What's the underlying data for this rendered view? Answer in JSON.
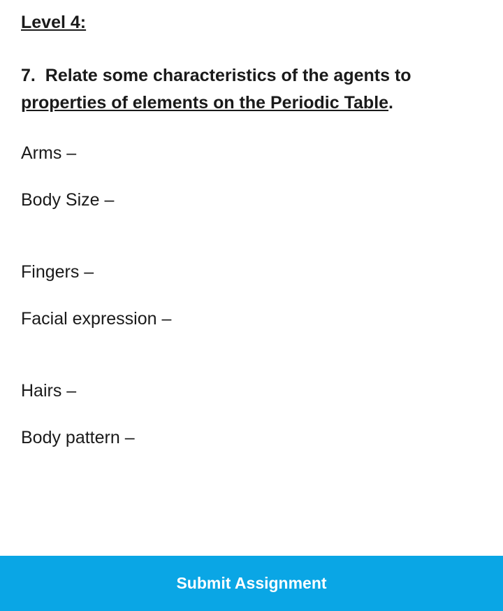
{
  "level_label": "Level 4:",
  "question": {
    "number": "7.",
    "prefix": "Relate some characteristics of the agents to ",
    "underlined": "properties of elements on the Periodic Table",
    "suffix": "."
  },
  "items": [
    "Arms –",
    "Body Size –",
    "Fingers –",
    "Facial expression –",
    "Hairs –",
    "Body pattern –"
  ],
  "button_label": "Submit Assignment",
  "colors": {
    "button_bg": "#0aa6e5",
    "button_text": "#ffffff",
    "text": "#1a1a1a",
    "background": "#ffffff"
  }
}
